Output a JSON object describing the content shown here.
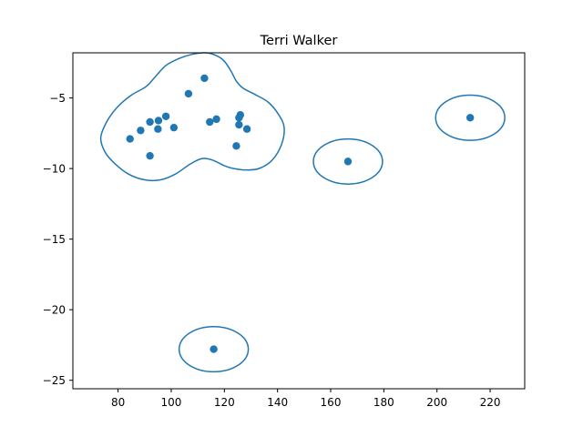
{
  "chart_data": {
    "type": "scatter",
    "title": "Terri Walker",
    "xlabel": "",
    "ylabel": "",
    "xlim": [
      63,
      233
    ],
    "ylim": [
      -25.6,
      -1.8
    ],
    "xticks": [
      80,
      100,
      120,
      140,
      160,
      180,
      200,
      220
    ],
    "yticks": [
      -5,
      -10,
      -15,
      -20,
      -25
    ],
    "xtick_labels": [
      "80",
      "100",
      "120",
      "140",
      "160",
      "180",
      "200",
      "220"
    ],
    "ytick_labels": [
      "−5",
      "−10",
      "−15",
      "−20",
      "−25"
    ],
    "grid": false,
    "color": "#1f77b4",
    "points": [
      {
        "x": 84.5,
        "y": -7.9
      },
      {
        "x": 88.5,
        "y": -7.3
      },
      {
        "x": 92.0,
        "y": -6.7
      },
      {
        "x": 92.0,
        "y": -9.1
      },
      {
        "x": 95.2,
        "y": -6.6
      },
      {
        "x": 95.0,
        "y": -7.2
      },
      {
        "x": 98.0,
        "y": -6.3
      },
      {
        "x": 101.0,
        "y": -7.1
      },
      {
        "x": 106.5,
        "y": -4.7
      },
      {
        "x": 112.5,
        "y": -3.6
      },
      {
        "x": 114.5,
        "y": -6.7
      },
      {
        "x": 117.0,
        "y": -6.5
      },
      {
        "x": 124.5,
        "y": -8.4
      },
      {
        "x": 125.5,
        "y": -6.4
      },
      {
        "x": 126.0,
        "y": -6.2
      },
      {
        "x": 125.5,
        "y": -6.9
      },
      {
        "x": 128.5,
        "y": -7.2
      },
      {
        "x": 166.5,
        "y": -9.5
      },
      {
        "x": 212.5,
        "y": -6.4
      },
      {
        "x": 116.0,
        "y": -22.8
      }
    ],
    "contours": [
      {
        "name": "",
        "closed": true,
        "path": [
          [
            73.5,
            -7.8
          ],
          [
            76.0,
            -6.6
          ],
          [
            80.0,
            -5.6
          ],
          [
            85.0,
            -4.8
          ],
          [
            90.5,
            -4.2
          ],
          [
            94.0,
            -3.5
          ],
          [
            98.0,
            -2.7
          ],
          [
            103.0,
            -2.2
          ],
          [
            108.0,
            -1.9
          ],
          [
            113.0,
            -1.8
          ],
          [
            117.0,
            -2.0
          ],
          [
            120.0,
            -2.4
          ],
          [
            122.5,
            -3.1
          ],
          [
            124.5,
            -3.8
          ],
          [
            127.0,
            -4.3
          ],
          [
            131.0,
            -4.7
          ],
          [
            136.5,
            -5.3
          ],
          [
            140.5,
            -6.2
          ],
          [
            142.5,
            -7.1
          ],
          [
            141.5,
            -8.3
          ],
          [
            138.0,
            -9.4
          ],
          [
            133.0,
            -10.0
          ],
          [
            128.0,
            -10.1
          ],
          [
            123.5,
            -10.0
          ],
          [
            120.0,
            -9.8
          ],
          [
            115.5,
            -9.4
          ],
          [
            111.5,
            -9.3
          ],
          [
            107.0,
            -9.7
          ],
          [
            101.5,
            -10.4
          ],
          [
            96.0,
            -10.8
          ],
          [
            90.0,
            -10.8
          ],
          [
            84.0,
            -10.4
          ],
          [
            78.5,
            -9.6
          ],
          [
            75.0,
            -8.8
          ]
        ]
      },
      {
        "name": "",
        "closed": true,
        "ellipse": {
          "cx": 166.5,
          "cy": -9.5,
          "rx": 13.0,
          "ry": 1.6
        }
      },
      {
        "name": "",
        "closed": true,
        "ellipse": {
          "cx": 212.5,
          "cy": -6.4,
          "rx": 13.0,
          "ry": 1.6
        }
      },
      {
        "name": "",
        "closed": true,
        "ellipse": {
          "cx": 116.0,
          "cy": -22.8,
          "rx": 13.0,
          "ry": 1.6
        }
      }
    ]
  }
}
